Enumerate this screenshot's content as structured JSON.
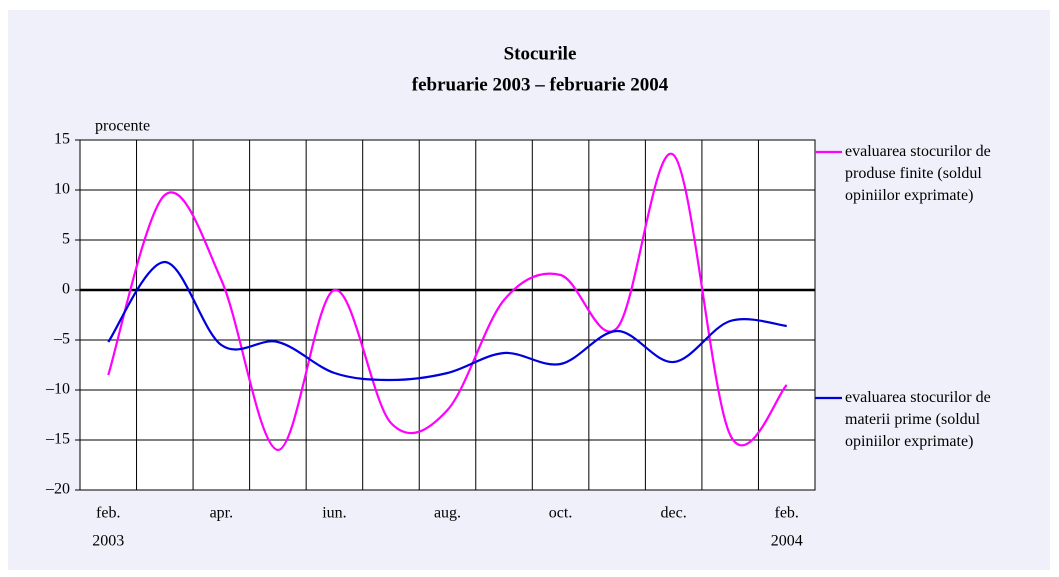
{
  "chart_data": {
    "type": "line",
    "title": "Stocurile",
    "subtitle": "februarie 2003 – februarie 2004",
    "y_label": "procente",
    "categories": [
      "feb.",
      null,
      "apr.",
      null,
      "iun.",
      null,
      "aug.",
      null,
      "oct.",
      null,
      "dec.",
      null,
      "feb."
    ],
    "annotations": [
      "2003",
      "2004"
    ],
    "series": [
      {
        "name": "evaluarea stocurilor de produse finite (soldul opiniilor exprimate)",
        "color": "#ff00ff",
        "values": [
          -8.5,
          9.5,
          1,
          -16,
          0,
          -13.3,
          -12,
          -1,
          1.5,
          -3.8,
          13.5,
          -14.5,
          -9.5
        ]
      },
      {
        "name": "evaluarea stocurilor de materii prime (soldul opiniilor exprimate)",
        "color": "#0000dd",
        "values": [
          -5.2,
          2.8,
          -5.5,
          -5.2,
          -8.3,
          -9,
          -8.3,
          -6.3,
          -7.4,
          -4.1,
          -7.2,
          -3.1,
          -3.6
        ]
      }
    ],
    "ylim": [
      -20,
      15
    ],
    "yticks": [
      15,
      10,
      5,
      0,
      {
        "value": -5,
        "label": "–5"
      },
      {
        "value": -10,
        "label": "–10"
      },
      {
        "value": -15,
        "label": "–15"
      },
      {
        "value": -20,
        "label": "–20"
      }
    ],
    "grid": true
  }
}
